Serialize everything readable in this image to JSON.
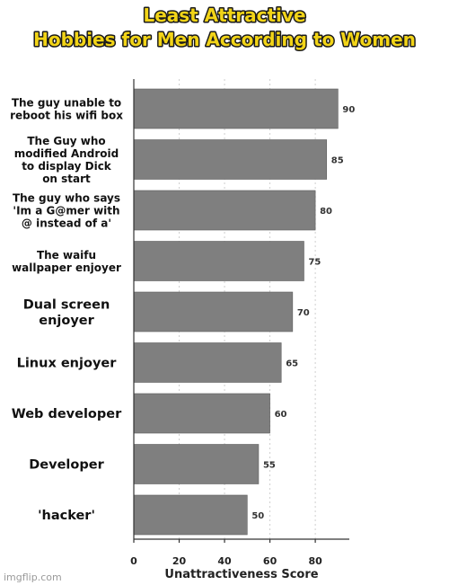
{
  "chart_data": {
    "type": "bar",
    "orientation": "horizontal",
    "title": [
      "Least Attractive",
      "Hobbies for Men According to Women"
    ],
    "categories": [
      [
        "The guy unable to",
        "reboot his wifi box"
      ],
      [
        "The Guy who",
        "modified Android",
        "to display Dick",
        "on start"
      ],
      [
        "The guy who says",
        "'Im a G@mer with",
        "@ instead of a'"
      ],
      [
        "The waifu",
        "wallpaper enjoyer"
      ],
      [
        "Dual screen",
        "enjoyer"
      ],
      [
        "Linux enjoyer"
      ],
      [
        "Web developer"
      ],
      [
        "Developer"
      ],
      [
        "'hacker'"
      ]
    ],
    "values": [
      90,
      85,
      80,
      75,
      70,
      65,
      60,
      55,
      50
    ],
    "data_labels": [
      "90",
      "85",
      "80",
      "75",
      "70",
      "65",
      "60",
      "55",
      "50"
    ],
    "xlabel": "Unattractiveness Score",
    "xlim": [
      0,
      95
    ],
    "xticks": [
      0,
      20,
      40,
      60,
      80
    ],
    "xtick_labels": [
      "0",
      "20",
      "40",
      "60",
      "80"
    ],
    "grid": true,
    "colors": {
      "bar": "#7f7f7f",
      "title_fill": "#f2d417",
      "title_stroke": "#1a1a1a"
    }
  },
  "watermark": "imgflip.com"
}
